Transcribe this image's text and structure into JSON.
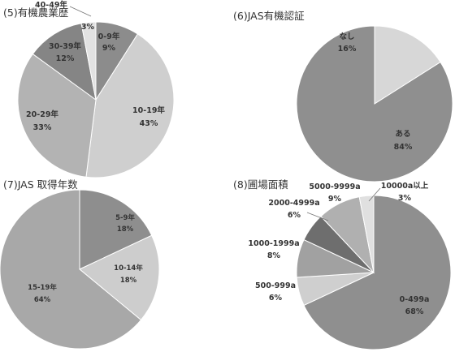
{
  "chart_data": [
    {
      "type": "pie",
      "title": "(5)有機農業歴",
      "categories": [
        "0-9年",
        "10-19年",
        "20-29年",
        "30-39年",
        "40-49年"
      ],
      "values": [
        9,
        43,
        33,
        12,
        3
      ],
      "percent_labels": [
        "9%",
        "43%",
        "33%",
        "12%",
        "3%"
      ],
      "colors": [
        "#8c8c8c",
        "#cfcfcf",
        "#b3b3b3",
        "#858585",
        "#e2e2e2"
      ]
    },
    {
      "type": "pie",
      "title": "(6)JAS有機認証",
      "categories": [
        "なし",
        "ある"
      ],
      "values": [
        16,
        84
      ],
      "percent_labels": [
        "16%",
        "84%"
      ],
      "colors": [
        "#d7d7d7",
        "#8f8f8f"
      ]
    },
    {
      "type": "pie",
      "title": "(7)JAS 取得年数",
      "categories": [
        "5-9年",
        "10-14年",
        "15-19年"
      ],
      "values": [
        18,
        18,
        64
      ],
      "percent_labels": [
        "18%",
        "18%",
        "64%"
      ],
      "colors": [
        "#8e8e8e",
        "#cdcdcd",
        "#a8a8a8"
      ]
    },
    {
      "type": "pie",
      "title": "(8)圃場面積",
      "categories": [
        "0-499a",
        "500-999a",
        "1000-1999a",
        "2000-4999a",
        "5000-9999a",
        "10000a以上"
      ],
      "values": [
        68,
        6,
        8,
        6,
        9,
        3
      ],
      "percent_labels": [
        "68%",
        "6%",
        "8%",
        "6%",
        "9%",
        "3%"
      ],
      "colors": [
        "#8f8f8f",
        "#cfcfcf",
        "#a1a1a1",
        "#6e6e6e",
        "#b0b0b0",
        "#e0e0e0"
      ]
    }
  ]
}
